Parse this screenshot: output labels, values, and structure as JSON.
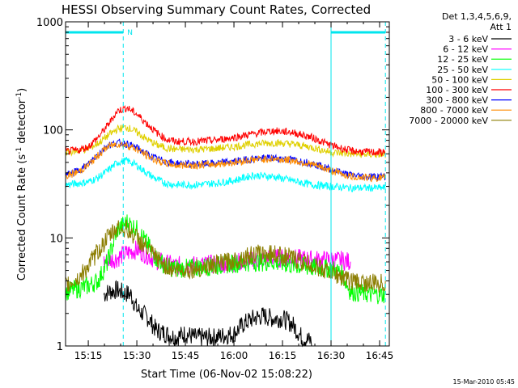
{
  "chart_data": {
    "type": "line",
    "title": "HESSI Observing Summary Count Rates, Corrected",
    "xlabel": "Start Time (06-Nov-02 15:08:22)",
    "ylabel": "Corrected Count Rate (s",
    "ylabel_sup": "-1",
    "ylabel_tail": " detector",
    "ylabel_sup2": "-1",
    "ylabel_close": ")",
    "yscale": "log",
    "ylim": [
      1,
      1000
    ],
    "xlim_minutes": [
      15.133,
      16.8
    ],
    "x_unit": "hours (UT)",
    "x_ticks": [
      {
        "t": 15.25,
        "label": "15:15"
      },
      {
        "t": 15.5,
        "label": "15:30"
      },
      {
        "t": 15.75,
        "label": "15:45"
      },
      {
        "t": 16.0,
        "label": "16:00"
      },
      {
        "t": 16.25,
        "label": "16:15"
      },
      {
        "t": 16.5,
        "label": "16:30"
      },
      {
        "t": 16.75,
        "label": "16:45"
      }
    ],
    "y_ticks": [
      {
        "v": 1,
        "label": "1"
      },
      {
        "v": 10,
        "label": "10"
      },
      {
        "v": 100,
        "label": "100"
      },
      {
        "v": 1000,
        "label": "1000"
      }
    ],
    "legend_header": [
      "Det 1,3,4,5,6,9,",
      "Att 1"
    ],
    "legend_position": "right",
    "series": [
      {
        "name": "3 - 6 keV",
        "color": "#000000",
        "start": 15.33,
        "points": [
          [
            15.33,
            3.0
          ],
          [
            15.36,
            3.2
          ],
          [
            15.4,
            3.3
          ],
          [
            15.43,
            3.1
          ],
          [
            15.47,
            3.0
          ],
          [
            15.5,
            2.2
          ],
          [
            15.53,
            2.0
          ],
          [
            15.56,
            1.8
          ],
          [
            15.6,
            1.4
          ],
          [
            15.65,
            1.3
          ],
          [
            15.7,
            1.2
          ],
          [
            15.75,
            1.3
          ],
          [
            15.8,
            1.2
          ],
          [
            15.9,
            1.2
          ],
          [
            16.0,
            1.3
          ],
          [
            16.05,
            1.6
          ],
          [
            16.1,
            1.8
          ],
          [
            16.15,
            1.9
          ],
          [
            16.2,
            1.8
          ],
          [
            16.25,
            1.8
          ],
          [
            16.3,
            1.6
          ],
          [
            16.35,
            1.2
          ],
          [
            16.4,
            1.1
          ]
        ]
      },
      {
        "name": "6 - 12 keV",
        "color": "#ff00ff",
        "start": 15.33,
        "points": [
          [
            15.33,
            6.0
          ],
          [
            15.36,
            6.2
          ],
          [
            15.4,
            6.5
          ],
          [
            15.43,
            7.0
          ],
          [
            15.47,
            7.5
          ],
          [
            15.5,
            7.8
          ],
          [
            15.55,
            7.0
          ],
          [
            15.6,
            6.2
          ],
          [
            15.65,
            5.8
          ],
          [
            15.7,
            5.5
          ],
          [
            15.75,
            5.6
          ],
          [
            15.8,
            5.6
          ],
          [
            15.9,
            5.7
          ],
          [
            16.0,
            5.9
          ],
          [
            16.1,
            6.2
          ],
          [
            16.2,
            6.5
          ],
          [
            16.3,
            6.5
          ],
          [
            16.4,
            6.3
          ],
          [
            16.55,
            6.2
          ],
          [
            16.6,
            6.0
          ]
        ]
      },
      {
        "name": "12 - 25 keV",
        "color": "#00ff00",
        "start": 15.133,
        "points": [
          [
            15.133,
            3.2
          ],
          [
            15.2,
            3.4
          ],
          [
            15.25,
            3.6
          ],
          [
            15.3,
            4.0
          ],
          [
            15.35,
            6.0
          ],
          [
            15.4,
            12.0
          ],
          [
            15.45,
            14.0
          ],
          [
            15.5,
            12.0
          ],
          [
            15.55,
            9.0
          ],
          [
            15.6,
            6.5
          ],
          [
            15.65,
            5.5
          ],
          [
            15.7,
            5.2
          ],
          [
            15.8,
            5.3
          ],
          [
            15.9,
            5.5
          ],
          [
            16.0,
            5.8
          ],
          [
            16.1,
            6.0
          ],
          [
            16.2,
            6.0
          ],
          [
            16.3,
            5.6
          ],
          [
            16.4,
            5.3
          ],
          [
            16.5,
            5.2
          ],
          [
            16.55,
            4.8
          ],
          [
            16.6,
            3.2
          ],
          [
            16.7,
            3.0
          ],
          [
            16.78,
            3.0
          ]
        ]
      },
      {
        "name": "25 - 50 keV",
        "color": "#00ffff",
        "start": 15.133,
        "points": [
          [
            15.133,
            31
          ],
          [
            15.2,
            32
          ],
          [
            15.25,
            33
          ],
          [
            15.3,
            36
          ],
          [
            15.35,
            42
          ],
          [
            15.4,
            50
          ],
          [
            15.45,
            52
          ],
          [
            15.5,
            47
          ],
          [
            15.55,
            40
          ],
          [
            15.6,
            35
          ],
          [
            15.65,
            32
          ],
          [
            15.7,
            31
          ],
          [
            15.8,
            31
          ],
          [
            15.9,
            32
          ],
          [
            16.0,
            34
          ],
          [
            16.05,
            36
          ],
          [
            16.1,
            38
          ],
          [
            16.2,
            37
          ],
          [
            16.3,
            34
          ],
          [
            16.4,
            31
          ],
          [
            16.5,
            30
          ],
          [
            16.6,
            29
          ],
          [
            16.7,
            29
          ],
          [
            16.78,
            29
          ]
        ]
      },
      {
        "name": "50 - 100 keV",
        "color": "#e0d000",
        "start": 15.133,
        "points": [
          [
            15.133,
            62
          ],
          [
            15.2,
            64
          ],
          [
            15.25,
            67
          ],
          [
            15.3,
            75
          ],
          [
            15.35,
            88
          ],
          [
            15.4,
            102
          ],
          [
            15.45,
            106
          ],
          [
            15.5,
            95
          ],
          [
            15.55,
            82
          ],
          [
            15.6,
            73
          ],
          [
            15.65,
            68
          ],
          [
            15.7,
            66
          ],
          [
            15.8,
            66
          ],
          [
            15.9,
            67
          ],
          [
            16.0,
            70
          ],
          [
            16.1,
            74
          ],
          [
            16.2,
            76
          ],
          [
            16.3,
            74
          ],
          [
            16.4,
            69
          ],
          [
            16.5,
            62
          ],
          [
            16.6,
            60
          ],
          [
            16.7,
            59
          ],
          [
            16.78,
            59
          ]
        ]
      },
      {
        "name": "100 - 300 keV",
        "color": "#ff0000",
        "start": 15.133,
        "points": [
          [
            15.133,
            63
          ],
          [
            15.2,
            65
          ],
          [
            15.25,
            70
          ],
          [
            15.3,
            85
          ],
          [
            15.35,
            110
          ],
          [
            15.4,
            150
          ],
          [
            15.45,
            160
          ],
          [
            15.5,
            140
          ],
          [
            15.55,
            115
          ],
          [
            15.6,
            95
          ],
          [
            15.65,
            82
          ],
          [
            15.7,
            78
          ],
          [
            15.8,
            78
          ],
          [
            15.9,
            80
          ],
          [
            16.0,
            85
          ],
          [
            16.1,
            92
          ],
          [
            16.2,
            98
          ],
          [
            16.3,
            95
          ],
          [
            16.4,
            85
          ],
          [
            16.5,
            72
          ],
          [
            16.6,
            64
          ],
          [
            16.7,
            62
          ],
          [
            16.78,
            62
          ]
        ]
      },
      {
        "name": "300 - 800 keV",
        "color": "#0000ff",
        "start": 15.133,
        "points": [
          [
            15.133,
            38
          ],
          [
            15.2,
            42
          ],
          [
            15.25,
            48
          ],
          [
            15.3,
            60
          ],
          [
            15.35,
            72
          ],
          [
            15.4,
            76
          ],
          [
            15.45,
            74
          ],
          [
            15.5,
            68
          ],
          [
            15.55,
            60
          ],
          [
            15.6,
            54
          ],
          [
            15.65,
            51
          ],
          [
            15.7,
            49
          ],
          [
            15.8,
            48
          ],
          [
            15.9,
            49
          ],
          [
            16.0,
            51
          ],
          [
            16.1,
            54
          ],
          [
            16.2,
            55
          ],
          [
            16.3,
            53
          ],
          [
            16.4,
            49
          ],
          [
            16.5,
            43
          ],
          [
            16.6,
            38
          ],
          [
            16.7,
            37
          ],
          [
            16.78,
            37
          ]
        ]
      },
      {
        "name": "800 - 7000 keV",
        "color": "#ff8c00",
        "start": 15.133,
        "points": [
          [
            15.133,
            37
          ],
          [
            15.2,
            41
          ],
          [
            15.25,
            47
          ],
          [
            15.3,
            58
          ],
          [
            15.35,
            70
          ],
          [
            15.4,
            74
          ],
          [
            15.45,
            72
          ],
          [
            15.5,
            66
          ],
          [
            15.55,
            58
          ],
          [
            15.6,
            52
          ],
          [
            15.65,
            49
          ],
          [
            15.7,
            47
          ],
          [
            15.8,
            47
          ],
          [
            15.9,
            48
          ],
          [
            16.0,
            50
          ],
          [
            16.1,
            53
          ],
          [
            16.2,
            54
          ],
          [
            16.3,
            52
          ],
          [
            16.4,
            48
          ],
          [
            16.5,
            42
          ],
          [
            16.6,
            37
          ],
          [
            16.7,
            36
          ],
          [
            16.78,
            36
          ]
        ]
      },
      {
        "name": "7000 - 20000 keV",
        "color": "#8b7d00",
        "start": 15.133,
        "points": [
          [
            15.133,
            3.6
          ],
          [
            15.2,
            4.2
          ],
          [
            15.25,
            5.5
          ],
          [
            15.3,
            7.5
          ],
          [
            15.35,
            10.0
          ],
          [
            15.4,
            12.5
          ],
          [
            15.45,
            12.0
          ],
          [
            15.5,
            10.0
          ],
          [
            15.55,
            8.0
          ],
          [
            15.6,
            6.5
          ],
          [
            15.65,
            5.5
          ],
          [
            15.7,
            5.0
          ],
          [
            15.8,
            5.2
          ],
          [
            15.9,
            5.6
          ],
          [
            16.0,
            6.2
          ],
          [
            16.1,
            7.0
          ],
          [
            16.2,
            7.2
          ],
          [
            16.3,
            6.5
          ],
          [
            16.4,
            5.6
          ],
          [
            16.5,
            4.8
          ],
          [
            16.6,
            4.0
          ],
          [
            16.7,
            3.8
          ],
          [
            16.78,
            3.8
          ]
        ]
      }
    ],
    "night_bars": [
      [
        15.133,
        15.43
      ],
      [
        16.5,
        16.78
      ]
    ],
    "night_marker_label": "N",
    "vlines_solid": [
      15.133,
      16.5
    ],
    "vlines_dashed": [
      15.43,
      16.78
    ],
    "footer_date": "15-Mar-2010 05:45"
  }
}
